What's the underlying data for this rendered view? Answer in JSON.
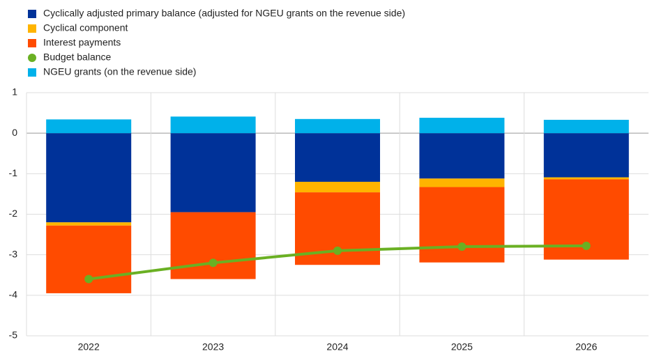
{
  "chart_data": {
    "type": "bar",
    "categories": [
      "2022",
      "2023",
      "2024",
      "2025",
      "2026"
    ],
    "series": [
      {
        "name": "Cyclically adjusted primary balance (adjusted for NGEU grants on the revenue side)",
        "color": "#003299",
        "values": [
          -2.2,
          -1.95,
          -1.2,
          -1.12,
          -1.09
        ]
      },
      {
        "name": "Cyclical component",
        "color": "#ffb400",
        "values": [
          -0.08,
          0,
          -0.26,
          -0.21,
          -0.05
        ]
      },
      {
        "name": "Interest payments",
        "color": "#ff4b00",
        "values": [
          -1.67,
          -1.65,
          -1.79,
          -1.86,
          -1.98
        ]
      },
      {
        "name": "Budget balance",
        "color": "#6ab023",
        "type": "line",
        "values": [
          -3.6,
          -3.2,
          -2.9,
          -2.8,
          -2.78
        ]
      },
      {
        "name": "NGEU grants (on the revenue side)",
        "color": "#00b1ea",
        "values": [
          0.34,
          0.41,
          0.35,
          0.38,
          0.33
        ]
      }
    ],
    "ylim": [
      -5,
      1
    ],
    "yticks": [
      -5,
      -4,
      -3,
      -2,
      -1,
      0,
      1
    ],
    "grid": true
  }
}
